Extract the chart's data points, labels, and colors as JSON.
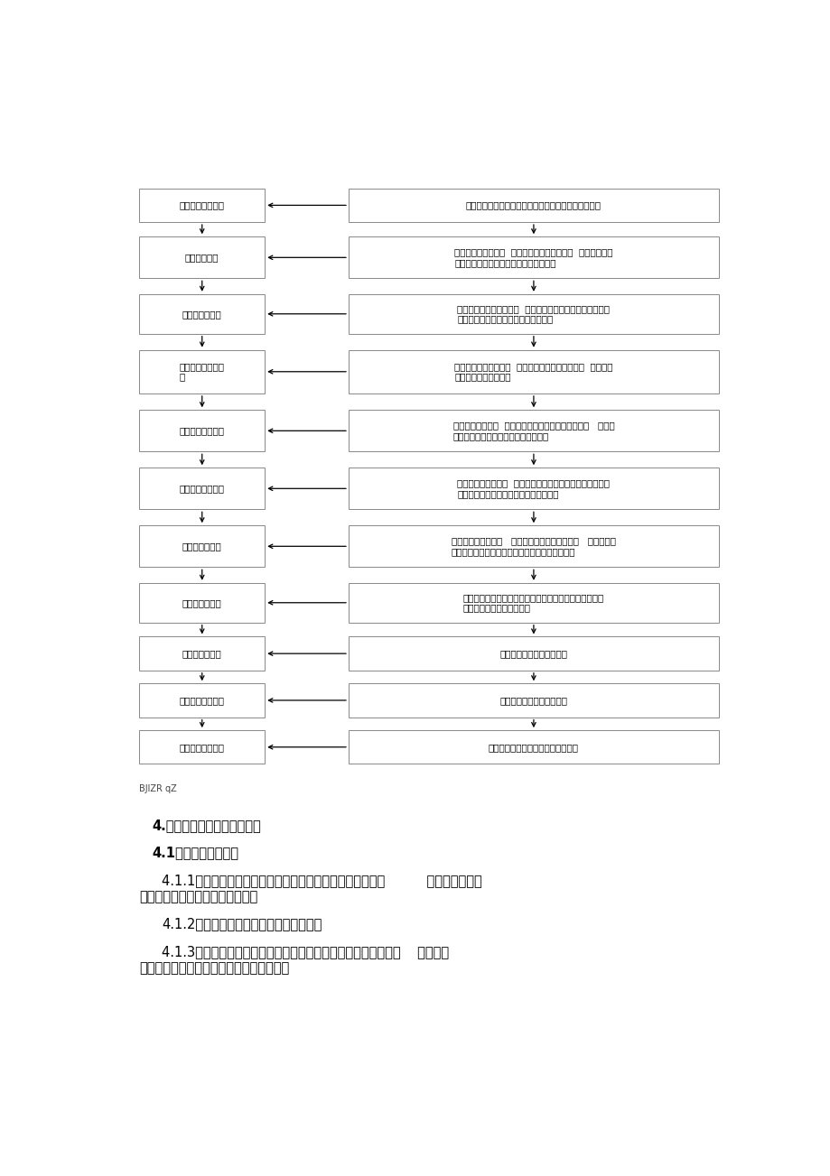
{
  "background_color": "#ffffff",
  "page_width": 9.2,
  "page_height": 13.03,
  "dpi": 100,
  "flowchart": {
    "left_boxes": [
      {
        "label": "沉井平面位置测放",
        "row": 0
      },
      {
        "label": "沉井基坑开挙",
        "row": 1
      },
      {
        "label": "沉井砂垓层铺设",
        "row": 2
      },
      {
        "label": "铺承垓木或浇垓层\n砼",
        "row": 3
      },
      {
        "label": "沉井井体结构制作",
        "row": 4
      },
      {
        "label": "拆模及凿除垓层砼",
        "row": 5
      },
      {
        "label": "沉井下沉及纠偏",
        "row": 6
      },
      {
        "label": "沉井终沉及封底",
        "row": 7
      },
      {
        "label": "沉井底板砼浇注",
        "row": 8
      },
      {
        "label": "沉井内部结构制作",
        "row": 9
      },
      {
        "label": "沉井施工质量验收",
        "row": 10
      }
    ],
    "right_boxes": [
      {
        "label": "测量监理工程师复验坐标控制点沉井轴线及高程控制点",
        "row": 0
      },
      {
        "label": "主体沉井设计交底、  审查沉井施工组织设计、  编制沉井工程\n监理细则，向施工单位进行监理细则交底",
        "row": 1
      },
      {
        "label": "对砂垓层分层铺设厚度、  夸实质量及环刀取样测量干容重进\n行巡查取样，监督对集水井及时抽排水",
        "row": 2
      },
      {
        "label": "复验控制沉井平面尺寸  「龙门框」及砂垓层标高，  旁站承垓\n木铺设或垓层砼的浇注",
        "row": 3
      },
      {
        "label": "对模板制作安装、  钉筋制作及绑扎进行检验并验收，   对砼浇\n注实施方案进行审查，旁站沉井砼浇捣",
        "row": 4
      },
      {
        "label": "查验沉井外观质量、  审查砼缺陷修补方案及外壁防水涂料施\n工，检查下沉准备工作，旁站垓层砼凿除",
        "row": 5
      },
      {
        "label": "审查下沉实施方案，   跟班监理沉井下沉及纠偏，   督促施工单\n位勘测量勤纠偏，确保沉井在不断纠偏中连续下沉",
        "row": 6
      },
      {
        "label": "接近终沉标高阶段放慢下沉速度纠偏纠平面位移审查封底\n实施方案，督促封底全过程",
        "row": 7
      },
      {
        "label": "钉筋隐蔽验收，旁站砼浇注",
        "row": 8
      },
      {
        "label": "钉筋模板验收，旁站砼浇注",
        "row": 9
      },
      {
        "label": "按主控项目和一般项目进行质量验收",
        "row": 10
      }
    ]
  },
  "footer_text": "BJlZR qZ",
  "body_lines": [
    {
      "text": "4.监理工作控制要点及目标值",
      "indent": 1,
      "bold": true,
      "size": 10.5
    },
    {
      "text": "4.1测量监理控制要点",
      "indent": 1,
      "bold": true,
      "size": 10.5
    },
    {
      "text": "4.1.1复核承包商放样的沉井双向轴线控制框及四角角点坐标          （矩形沉井），",
      "indent": 2,
      "bold": false,
      "size": 10.5,
      "continuation": "或圆心坐标及直径（圆形沉井）。"
    },
    {
      "text": "4.1.2复核砂垓层边线，素砼垓层的抄平。",
      "indent": 2,
      "bold": false,
      "size": 10.5
    },
    {
      "text": "4.1.3分节制作沉井时，测量监理工程师要复核分节沉井的标高，    严格控制",
      "indent": 2,
      "bold": false,
      "size": 10.5,
      "continuation": "上下节沉井的轴线位置和垂直度保持一致。"
    }
  ]
}
